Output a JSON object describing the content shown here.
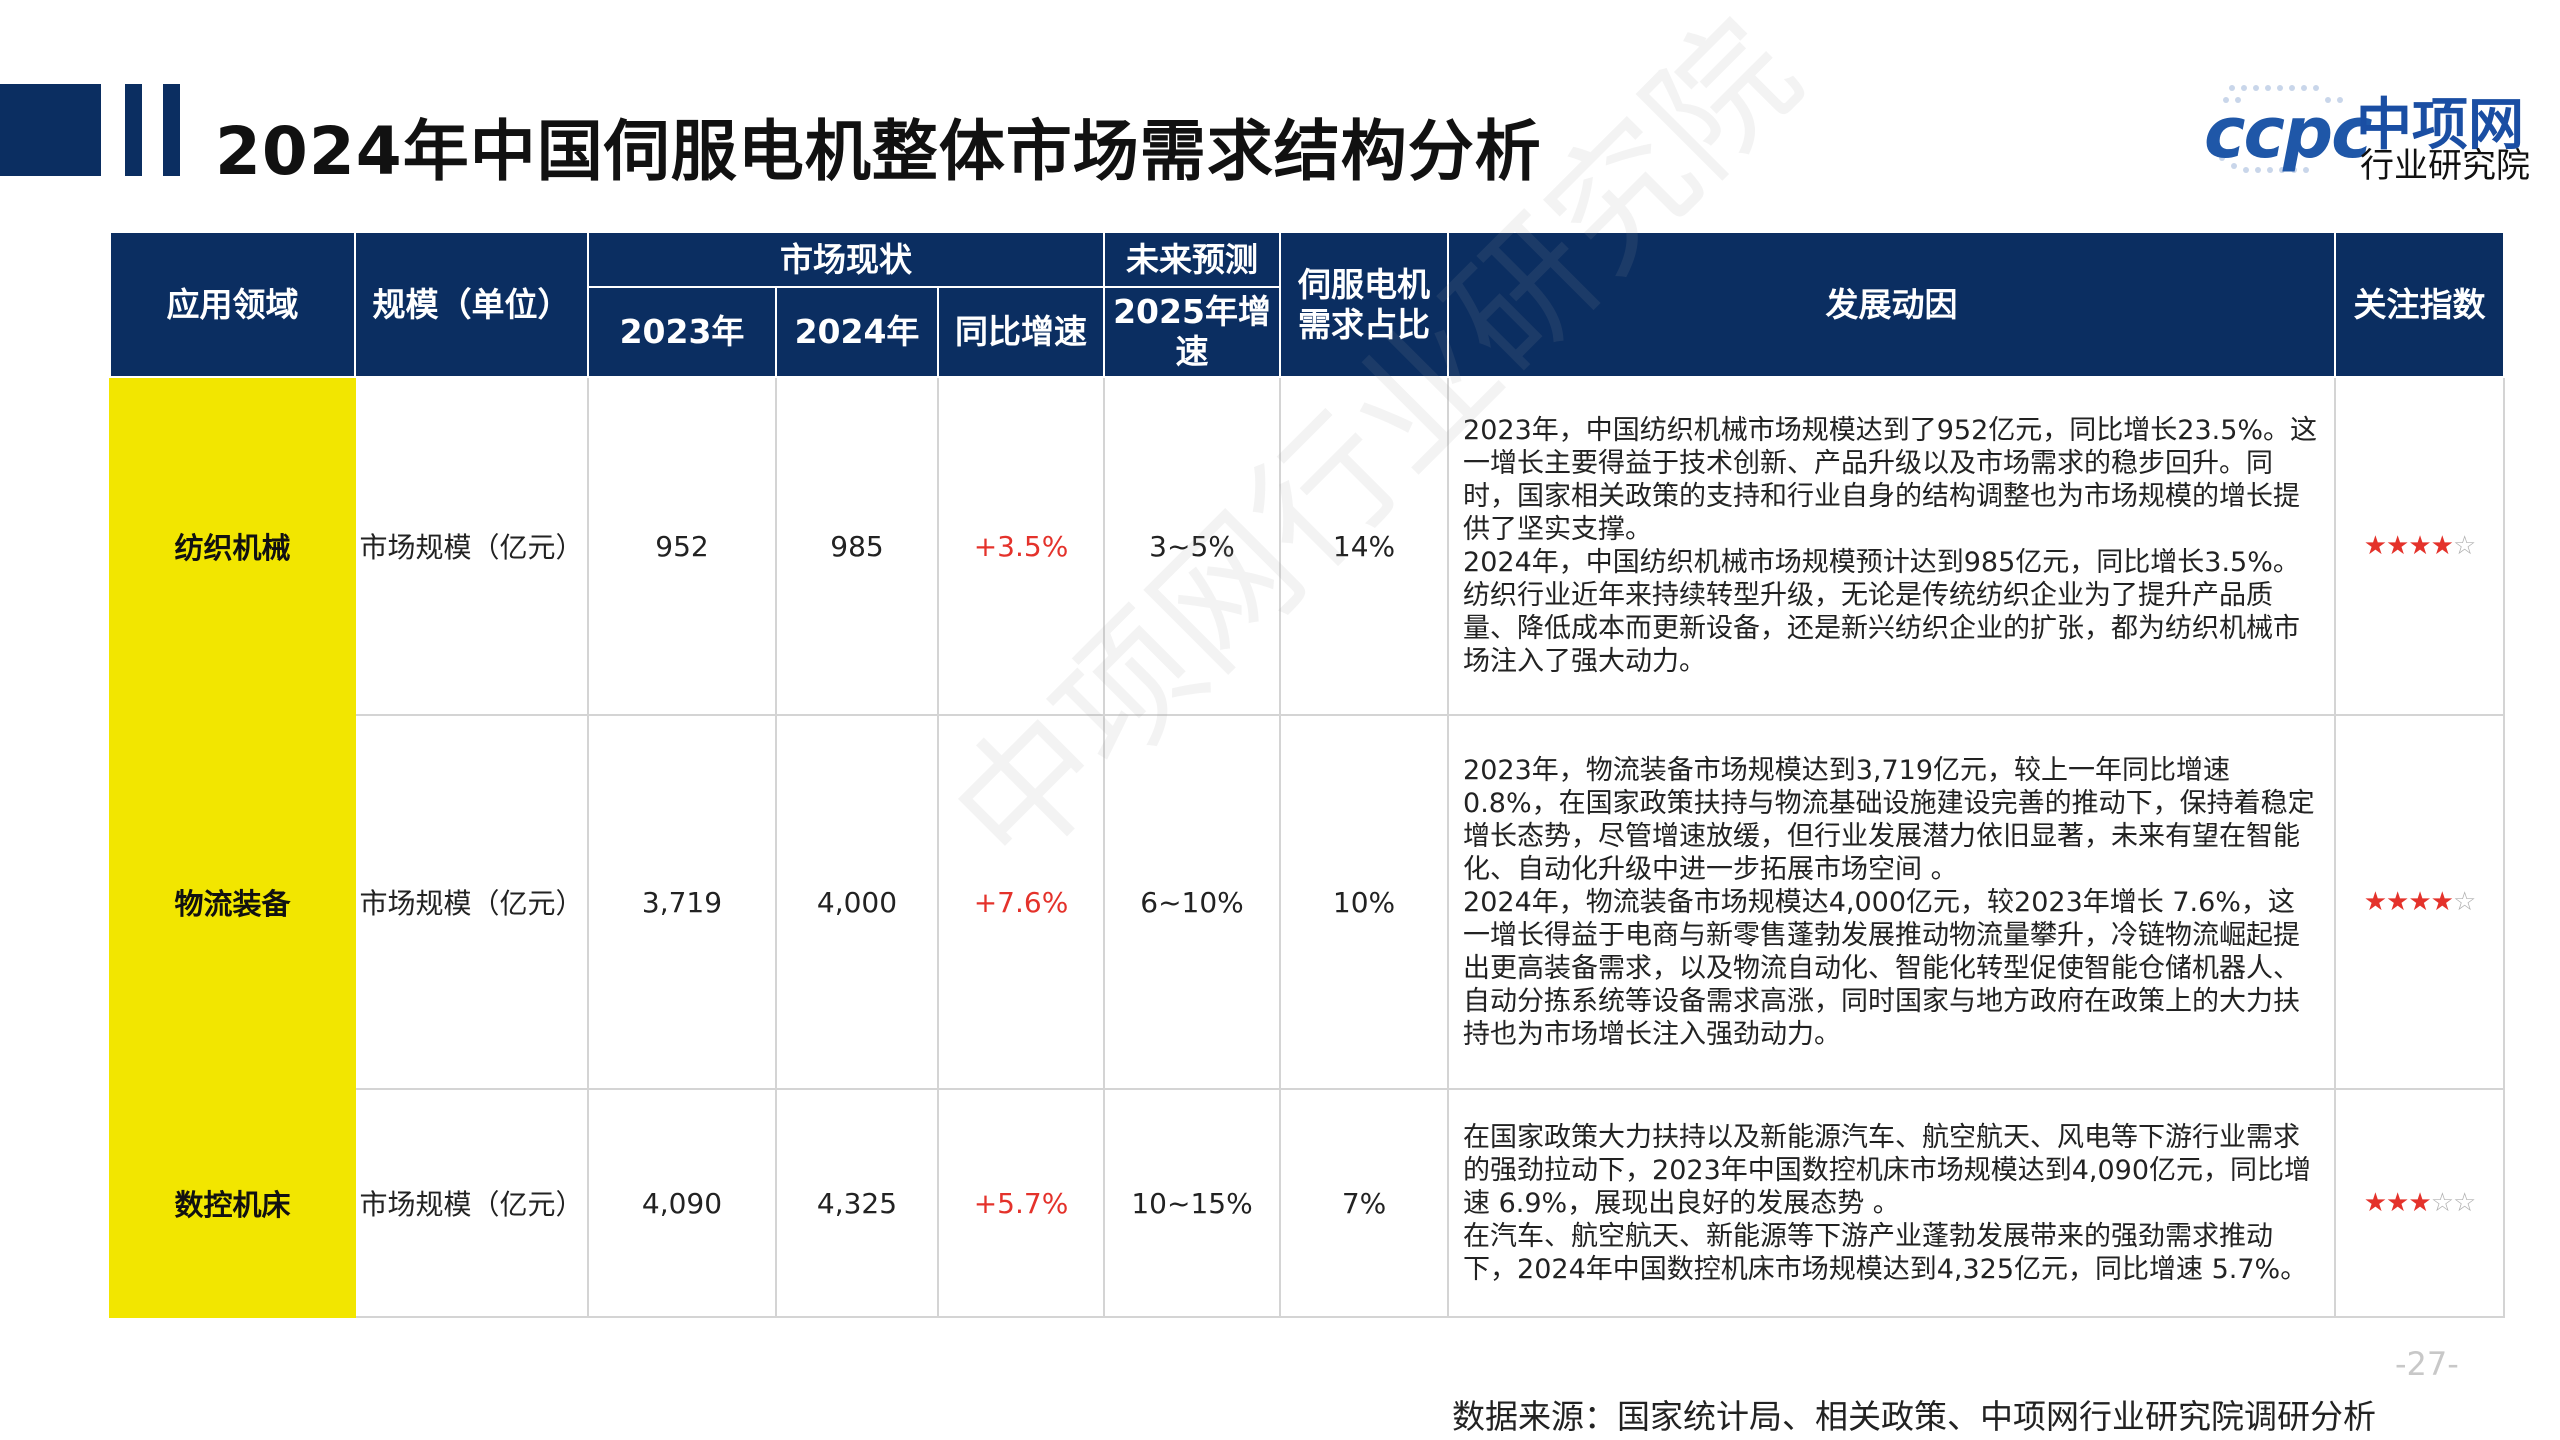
{
  "title": "2024年中国伺服电机整体市场需求结构分析",
  "logo": {
    "mark": "ccpc",
    "name": "中项网",
    "subtitle": "行业研究院"
  },
  "table": {
    "headers": {
      "field": "应用领域",
      "scale": "规模（单位）",
      "market_status": "市场现状",
      "y2023": "2023年",
      "y2024": "2024年",
      "yoy": "同比增速",
      "forecast": "未来预测",
      "growth2025": "2025年增速",
      "share": "伺服电机需求占比",
      "drivers": "发展动因",
      "attention": "关注指数"
    },
    "rows": [
      {
        "field": "纺织机械",
        "unit": "市场规模（亿元）",
        "y2023": "952",
        "y2024": "985",
        "yoy": "+3.5%",
        "growth2025": "3~5%",
        "share": "14%",
        "drivers": [
          "2023年，中国纺织机械市场规模达到了952亿元，同比增长23.5%。这一增长主要得益于技术创新、产品升级以及市场需求的稳步回升。同时，国家相关政策的支持和行业自身的结构调整也为市场规模的增长提供了坚实支撑。",
          "2024年，中国纺织机械市场规模预计达到985亿元，同比增长3.5%。纺织行业近年来持续转型升级，无论是传统纺织企业为了提升产品质量、降低成本而更新设备，还是新兴纺织企业的扩张，都为纺织机械市场注入了强大动力。"
        ],
        "stars_filled": "★★★★",
        "stars_empty": "☆"
      },
      {
        "field": "物流装备",
        "unit": "市场规模（亿元）",
        "y2023": "3,719",
        "y2024": "4,000",
        "yoy": "+7.6%",
        "growth2025": "6~10%",
        "share": "10%",
        "drivers": [
          "2023年，物流装备市场规模达到3,719亿元，较上一年同比增速 0.8%，在国家政策扶持与物流基础设施建设完善的推动下，保持着稳定增长态势，尽管增速放缓，但行业发展潜力依旧显著，未来有望在智能化、自动化升级中进一步拓展市场空间 。",
          "2024年，物流装备市场规模达4,000亿元，较2023年增长 7.6%，这一增长得益于电商与新零售蓬勃发展推动物流量攀升，冷链物流崛起提出更高装备需求，以及物流自动化、智能化转型促使智能仓储机器人、自动分拣系统等设备需求高涨，同时国家与地方政府在政策上的大力扶持也为市场增长注入强劲动力。"
        ],
        "stars_filled": "★★★★",
        "stars_empty": "☆"
      },
      {
        "field": "数控机床",
        "unit": "市场规模（亿元）",
        "y2023": "4,090",
        "y2024": "4,325",
        "yoy": "+5.7%",
        "growth2025": "10~15%",
        "share": "7%",
        "drivers": [
          "在国家政策大力扶持以及新能源汽车、航空航天、风电等下游行业需求的强劲拉动下，2023年中国数控机床市场规模达到4,090亿元，同比增速 6.9%，展现出良好的发展态势 。",
          "在汽车、航空航天、新能源等下游产业蓬勃发展带来的强劲需求推动下，2024年中国数控机床市场规模达到4,325亿元，同比增速 5.7%。"
        ],
        "stars_filled": "★★★",
        "stars_empty": "☆☆"
      }
    ]
  },
  "watermark": "中项网行业研究院",
  "page_number": "-27-",
  "source": "数据来源：国家统计局、相关政策、中项网行业研究院调研分析"
}
